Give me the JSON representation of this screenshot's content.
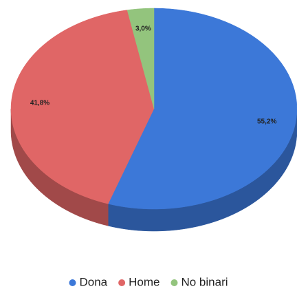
{
  "chart_data": {
    "type": "pie",
    "categories": [
      "Dona",
      "Home",
      "No binari"
    ],
    "values": [
      55.2,
      41.8,
      3.0
    ],
    "value_labels": [
      "55,2%",
      "41,8%",
      "3,0%"
    ],
    "colors": [
      "#3c78d8",
      "#e06666",
      "#93c47d"
    ],
    "legend": "bottom"
  }
}
